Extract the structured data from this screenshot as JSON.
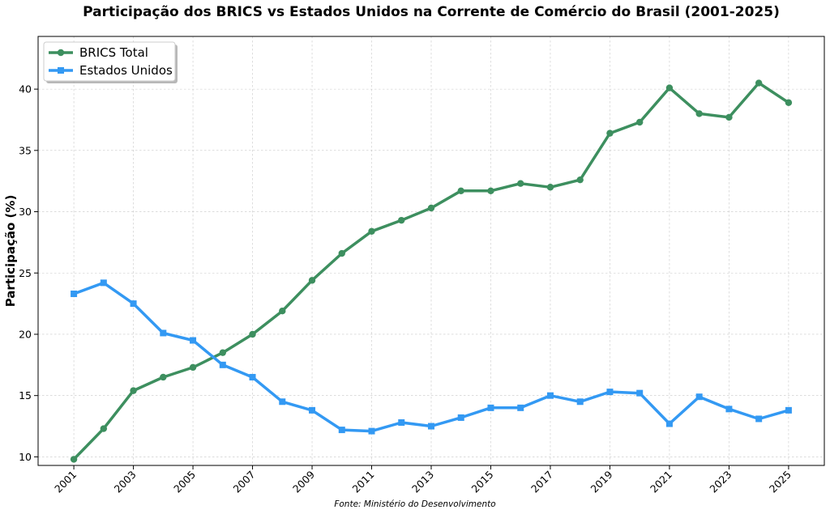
{
  "chart_data": {
    "type": "line",
    "title": "Participação dos BRICS vs Estados Unidos na Corrente de Comércio do Brasil (2001-2025)",
    "xlabel": "",
    "ylabel": "Participação (%)",
    "source": "Fonte: Ministério do Desenvolvimento",
    "x": [
      2001,
      2002,
      2003,
      2004,
      2005,
      2006,
      2007,
      2008,
      2009,
      2010,
      2011,
      2012,
      2013,
      2014,
      2015,
      2016,
      2017,
      2018,
      2019,
      2020,
      2021,
      2022,
      2023,
      2024,
      2025
    ],
    "xticks": [
      "2001",
      "2003",
      "2005",
      "2007",
      "2009",
      "2011",
      "2013",
      "2015",
      "2017",
      "2019",
      "2021",
      "2023",
      "2025"
    ],
    "yticks": [
      "10",
      "15",
      "20",
      "25",
      "30",
      "35",
      "40"
    ],
    "xlim": [
      1999.8,
      2026.2
    ],
    "ylim": [
      9.3,
      44.3
    ],
    "grid": true,
    "legend_position": "top-left",
    "series": [
      {
        "name": "BRICS Total",
        "color": "#3d8f5f",
        "marker": "circle",
        "values": [
          9.8,
          12.3,
          15.4,
          16.5,
          17.3,
          18.5,
          20.0,
          21.9,
          24.4,
          26.6,
          28.4,
          29.3,
          30.3,
          31.7,
          31.7,
          32.3,
          32.0,
          32.6,
          36.4,
          37.3,
          40.1,
          38.0,
          37.7,
          40.5,
          38.9
        ]
      },
      {
        "name": "Estados Unidos",
        "color": "#3399f3",
        "marker": "square",
        "values": [
          23.3,
          24.2,
          22.5,
          20.1,
          19.5,
          17.5,
          16.5,
          14.5,
          13.8,
          12.2,
          12.1,
          12.8,
          12.5,
          13.2,
          14.0,
          14.0,
          15.0,
          14.5,
          15.3,
          15.2,
          12.7,
          14.9,
          13.9,
          13.1,
          13.8
        ]
      }
    ]
  }
}
